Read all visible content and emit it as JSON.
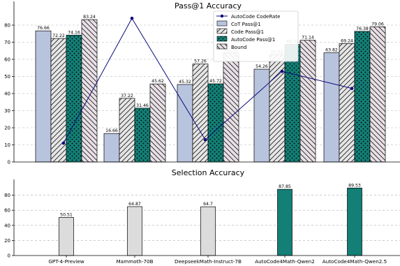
{
  "chart_data": [
    {
      "type": "bar",
      "title": "Pass@1 Accuracy",
      "categories": [
        "GPT-4-Preview",
        "Mammoth-70B",
        "DeepseekMath-Instruct-7B",
        "AutoCode4Math-Qwen2",
        "AutoCode4Math-Qwen2.5"
      ],
      "ylim": [
        0,
        85
      ],
      "yticks": [
        0,
        10,
        20,
        30,
        40,
        50,
        60,
        70,
        80
      ],
      "grid": "y-dashed",
      "legend_position": "top-center",
      "series": [
        {
          "name": "CoT Pass@1",
          "kind": "bar",
          "color": "#b8c4de",
          "pattern": "none",
          "values": [
            76.66,
            16.66,
            45.32,
            54.26,
            63.82
          ],
          "labels": [
            "76.66",
            "16.66",
            "45.32",
            "54.26",
            "63.82"
          ]
        },
        {
          "name": "Code Pass@1",
          "kind": "bar",
          "color": "#e6e6e6",
          "pattern": "diagonal-hatch",
          "values": [
            72.22,
            37.22,
            57.26,
            62.62,
            69.24
          ],
          "labels": [
            "72.22",
            "37.22",
            "57.26",
            "62.62",
            "69.24"
          ]
        },
        {
          "name": "AutoCode Pass@1",
          "kind": "bar",
          "color": "#137f76",
          "pattern": "dots",
          "values": [
            74.16,
            31.46,
            45.72,
            68.74,
            76.38
          ],
          "labels": [
            "74.16",
            "31.46",
            "45.72",
            "68.74",
            "76.38"
          ]
        },
        {
          "name": "Bound",
          "kind": "bar",
          "color": "#e8e0e6",
          "pattern": "back-diagonal-hatch",
          "values": [
            83.24,
            45.62,
            63.78,
            71.14,
            79.06
          ],
          "labels": [
            "83.24",
            "45.62",
            "63.78",
            "71.14",
            "79.06"
          ]
        },
        {
          "name": "AutoCode CodeRate",
          "kind": "line",
          "color": "#0b0b7d",
          "values": [
            11,
            84,
            13,
            53,
            43
          ]
        }
      ]
    },
    {
      "type": "bar",
      "title": "Selection Accuracy",
      "categories": [
        "GPT-4-Preview",
        "Mammoth-70B",
        "DeepseekMath-Instruct-7B",
        "AutoCode4Math-Qwen2",
        "AutoCode4Math-Qwen2.5"
      ],
      "ylim": [
        0,
        95
      ],
      "yticks": [
        0,
        20,
        40,
        60,
        80
      ],
      "grid": "y-dashed",
      "values": [
        50.51,
        64.87,
        64.7,
        87.85,
        89.53
      ],
      "labels": [
        "50.51",
        "64.87",
        "64.7",
        "87.85",
        "89.53"
      ],
      "colors": [
        "#dcdcdc",
        "#dcdcdc",
        "#dcdcdc",
        "#137f76",
        "#137f76"
      ]
    }
  ]
}
